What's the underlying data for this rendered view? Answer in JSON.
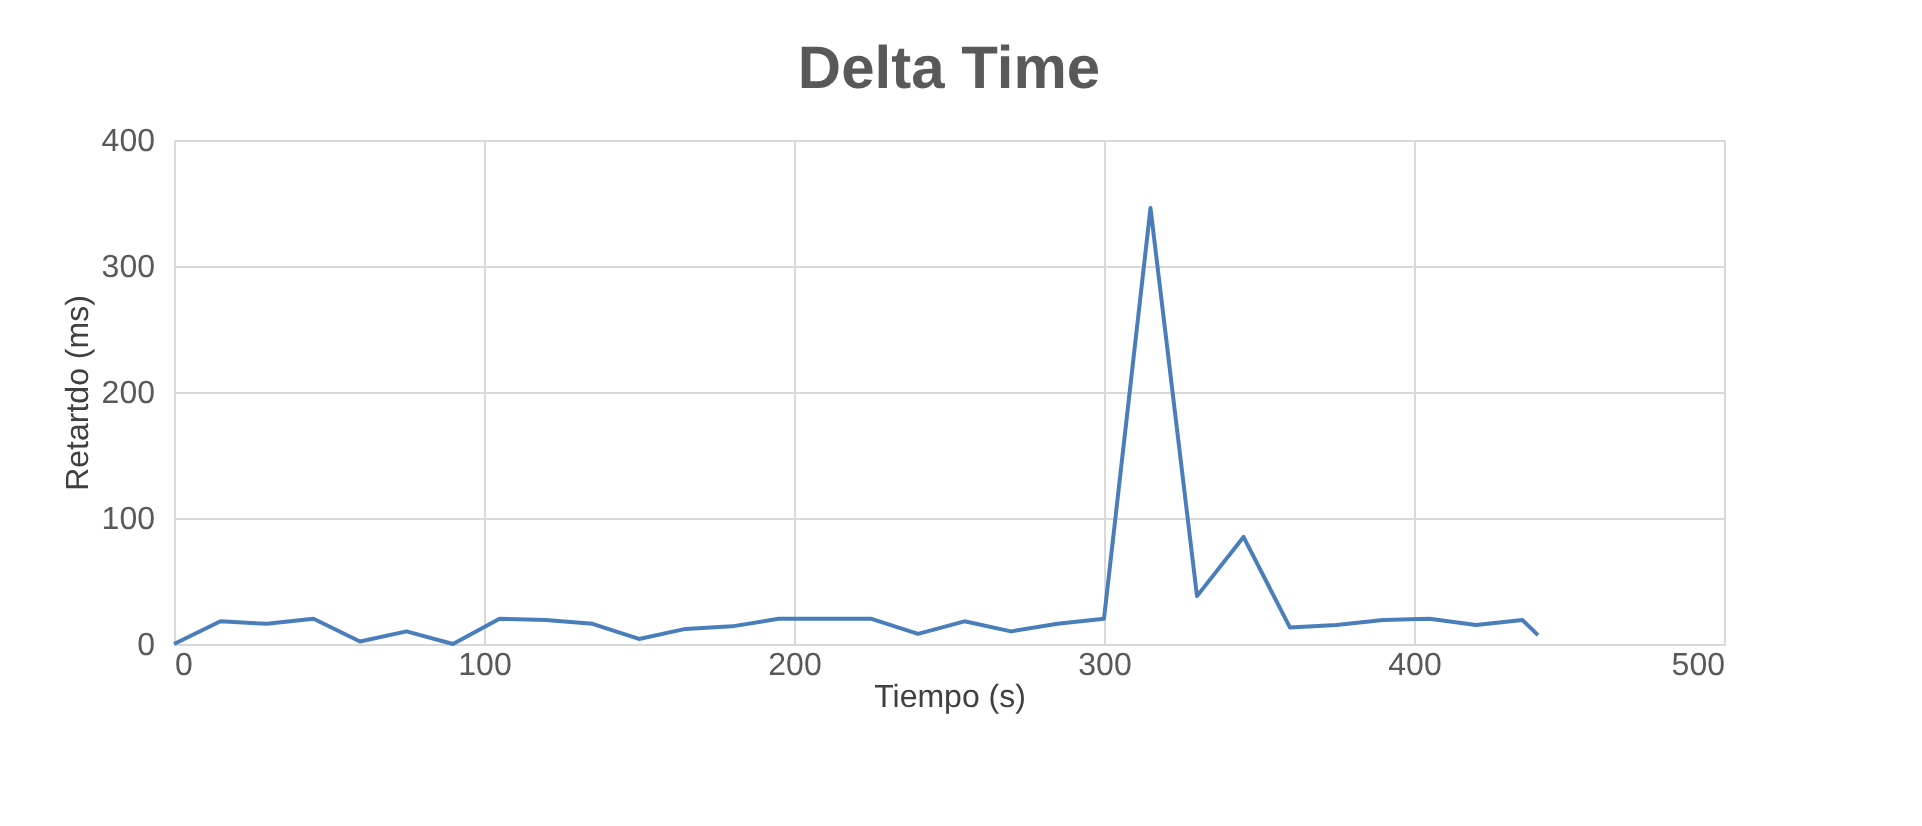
{
  "chart_data": {
    "type": "line",
    "title": "Delta Time",
    "xlabel": "Tiempo (s)",
    "ylabel": "Retartdo  (ms)",
    "x": [
      0,
      15,
      30,
      45,
      60,
      75,
      90,
      105,
      120,
      135,
      150,
      165,
      180,
      195,
      210,
      225,
      240,
      255,
      270,
      285,
      300,
      315,
      330,
      345,
      360,
      375,
      390,
      405,
      420,
      435,
      440
    ],
    "series": [
      {
        "color": "#4a7ebb",
        "values": [
          0,
          18,
          16,
          20,
          2,
          10,
          0,
          20,
          19,
          16,
          4,
          12,
          14,
          20,
          20,
          20,
          8,
          18,
          10,
          16,
          20,
          346,
          38,
          85,
          13,
          15,
          19,
          20,
          15,
          19,
          7
        ]
      }
    ],
    "xlim": [
      0,
      500
    ],
    "xticks": [
      0,
      100,
      200,
      300,
      400,
      500
    ],
    "ylim": [
      0,
      400
    ],
    "yticks": [
      0,
      100,
      200,
      300,
      400
    ],
    "grid": true,
    "marker": "none",
    "line_style": "solid"
  }
}
